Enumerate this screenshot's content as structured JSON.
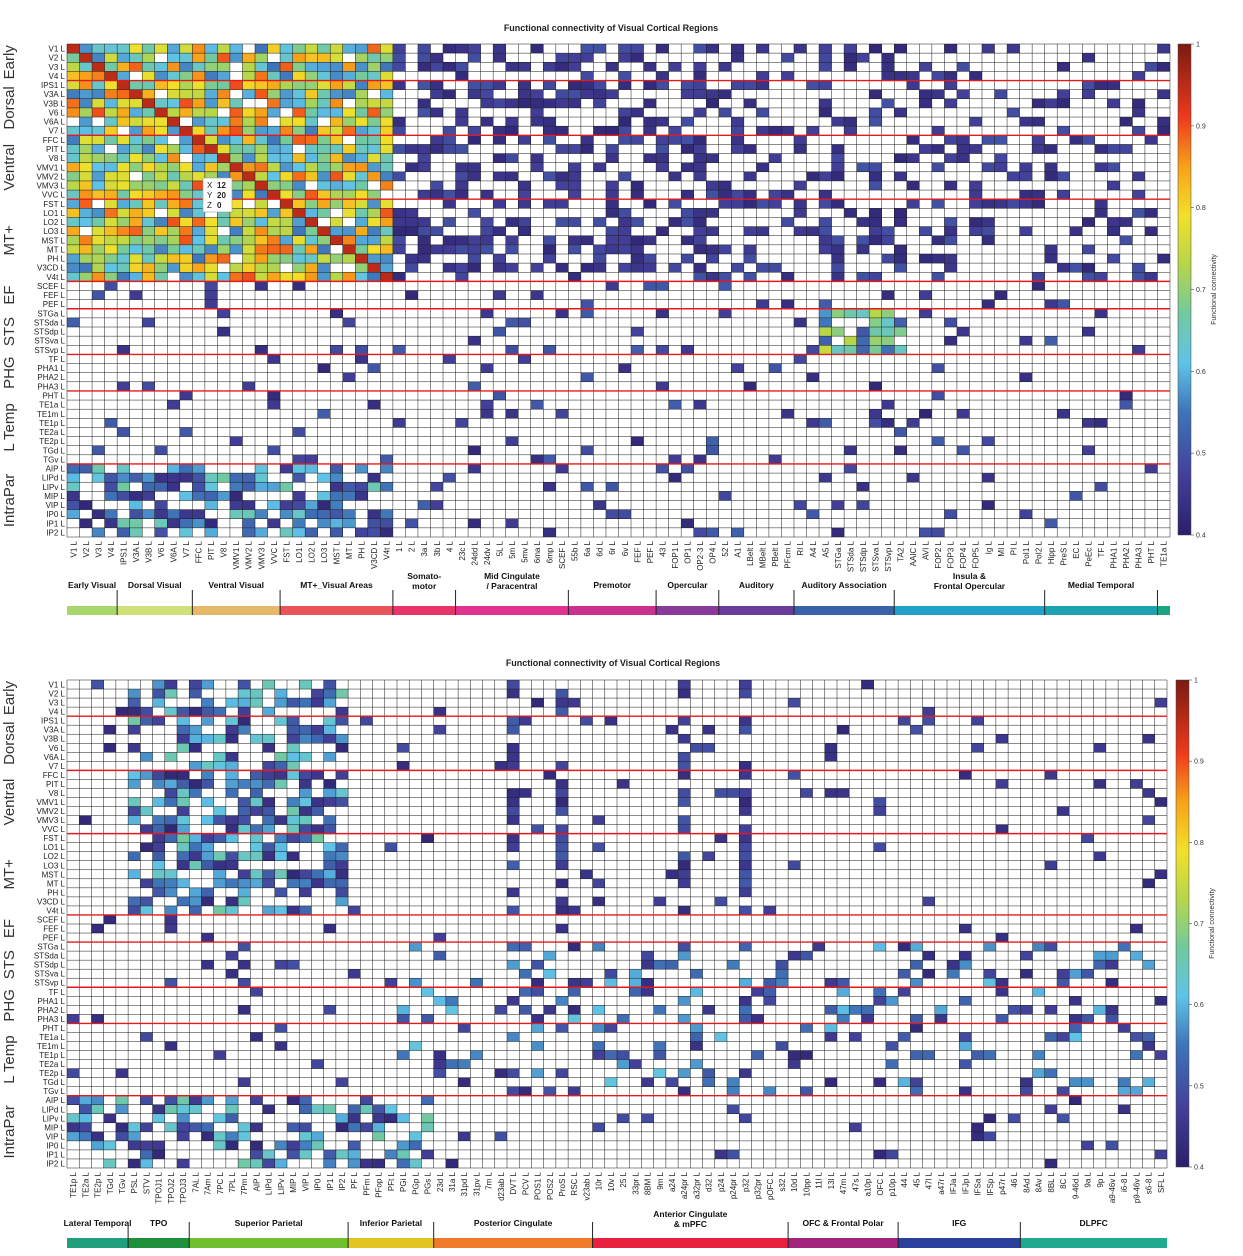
{
  "chart_data": [
    {
      "type": "heatmap",
      "title": "Functional connectivity of Visual Cortical Regions",
      "colorbar_label": "Functional connectivity",
      "colorbar_ticks": [
        "1",
        "0.9",
        "0.8",
        "0.7",
        "0.6",
        "0.5",
        "0.4"
      ],
      "value_range": [
        0.4,
        1
      ],
      "row_labels": [
        "V1 L",
        "V2 L",
        "V3 L",
        "V4 L",
        "IPS1 L",
        "V3A L",
        "V3B L",
        "V6 L",
        "V6A L",
        "V7 L",
        "FFC L",
        "PIT L",
        "V8 L",
        "VMV1 L",
        "VMV2 L",
        "VMV3 L",
        "VVC L",
        "FST L",
        "LO1 L",
        "LO2 L",
        "LO3 L",
        "MST L",
        "MT L",
        "PH L",
        "V3CD L",
        "V4t L",
        "SCEF L",
        "FEF L",
        "PEF L",
        "STGa L",
        "STSda L",
        "STSdp L",
        "STSva L",
        "STSvp L",
        "TF L",
        "PHA1 L",
        "PHA2 L",
        "PHA3 L",
        "PHT L",
        "TE1a L",
        "TE1m L",
        "TE1p L",
        "TE2a L",
        "TE2p L",
        "TGd L",
        "TGv L",
        "AIP L",
        "LIPd L",
        "LIPv L",
        "MIP L",
        "VIP L",
        "IP0 L",
        "IP1 L",
        "IP2 L"
      ],
      "row_groups": [
        {
          "name": "Early",
          "start": 0,
          "count": 4
        },
        {
          "name": "Dorsal",
          "start": 4,
          "count": 6
        },
        {
          "name": "Ventral",
          "start": 10,
          "count": 7
        },
        {
          "name": "MT+",
          "start": 17,
          "count": 9
        },
        {
          "name": "EF",
          "start": 26,
          "count": 3
        },
        {
          "name": "STS",
          "start": 29,
          "count": 5
        },
        {
          "name": "PHG",
          "start": 34,
          "count": 4
        },
        {
          "name": "L Temp",
          "start": 38,
          "count": 8
        },
        {
          "name": "IntraPar",
          "start": 46,
          "count": 8
        }
      ],
      "col_labels": [
        "V1 L",
        "V2 L",
        "V3 L",
        "V4 L",
        "IPS1 L",
        "V3A L",
        "V3B L",
        "V6 L",
        "V6A L",
        "V7 L",
        "FFC L",
        "PIT L",
        "V8 L",
        "VMV1 L",
        "VMV2 L",
        "VMV3 L",
        "VVC L",
        "FST L",
        "LO1 L",
        "LO2 L",
        "LO3 L",
        "MST L",
        "MT L",
        "PH L",
        "V3CD L",
        "V4t L",
        "1 L",
        "2 L",
        "3a L",
        "3b L",
        "4 L",
        "23c L",
        "24dd L",
        "24dv L",
        "5L L",
        "5m L",
        "5mv L",
        "6ma L",
        "6mp L",
        "SCEF L",
        "55b L",
        "6a L",
        "6d L",
        "6r L",
        "6v L",
        "FEF L",
        "PEF L",
        "43 L",
        "FOP1 L",
        "OP1 L",
        "OP2-3 L",
        "OP4 L",
        "52 L",
        "A1 L",
        "LBelt L",
        "MBelt L",
        "PBelt L",
        "PFcm L",
        "RI L",
        "A4 L",
        "A5 L",
        "STGa L",
        "STSda L",
        "STSdp L",
        "STSva L",
        "STSvp L",
        "TA2 L",
        "AAIC L",
        "AVI L",
        "FOP2 L",
        "FOP3 L",
        "FOP4 L",
        "FOP5 L",
        "Ig L",
        "MI L",
        "PI L",
        "PoI1 L",
        "PoI2 L",
        "Hipp L",
        "PreS L",
        "EC L",
        "PeEc L",
        "TF L",
        "PHA1 L",
        "PHA2 L",
        "PHA3 L",
        "PHT L",
        "TE1a L"
      ],
      "col_networks": [
        {
          "name": "Early Visual",
          "color": "#a6d66c",
          "start": 0,
          "count": 4
        },
        {
          "name": "Dorsal Visual",
          "color": "#cfe07a",
          "start": 4,
          "count": 6
        },
        {
          "name": "Ventral Visual",
          "color": "#e6b86a",
          "start": 10,
          "count": 7
        },
        {
          "name": "MT+_Visual Areas",
          "color": "#e9545b",
          "start": 17,
          "count": 9
        },
        {
          "name": "Somato-motor",
          "color": "#e8336b",
          "start": 26,
          "count": 5
        },
        {
          "name": "Mid Cingulate / Paracentral",
          "color": "#e0338f",
          "start": 31,
          "count": 9
        },
        {
          "name": "Premotor",
          "color": "#c9318f",
          "start": 40,
          "count": 7
        },
        {
          "name": "Opercular",
          "color": "#8a3b9a",
          "start": 47,
          "count": 5
        },
        {
          "name": "Auditory",
          "color": "#6a3d9a",
          "start": 52,
          "count": 6
        },
        {
          "name": "Auditory Association",
          "color": "#3a62a8",
          "start": 58,
          "count": 8
        },
        {
          "name": "Insula & Frontal Opercular",
          "color": "#22a0c8",
          "start": 66,
          "count": 12
        },
        {
          "name": "Medial Temporal",
          "color": "#1ea2b2",
          "start": 78,
          "count": 9
        },
        {
          "name": "",
          "color": "#1ea47e",
          "start": 87,
          "count": 1
        }
      ],
      "tooltip": {
        "x_label": "X",
        "x_value": "12",
        "y_label": "Y",
        "y_value": "20",
        "z_label": "Z",
        "z_value": "0"
      }
    },
    {
      "type": "heatmap",
      "title": "Functional connectivity of Visual Cortical Regions",
      "colorbar_label": "Functional connectivity",
      "colorbar_ticks": [
        "1",
        "0.9",
        "0.8",
        "0.7",
        "0.6",
        "0.5",
        "0.4"
      ],
      "value_range": [
        0.4,
        1
      ],
      "row_labels": [
        "V1 L",
        "V2 L",
        "V3 L",
        "V4 L",
        "IPS1 L",
        "V3A L",
        "V3B L",
        "V6 L",
        "V6A L",
        "V7 L",
        "FFC L",
        "PIT L",
        "V8 L",
        "VMV1 L",
        "VMV2 L",
        "VMV3 L",
        "VVC L",
        "FST L",
        "LO1 L",
        "LO2 L",
        "LO3 L",
        "MST L",
        "MT L",
        "PH L",
        "V3CD L",
        "V4t L",
        "SCEF L",
        "FEF L",
        "PEF L",
        "STGa L",
        "STSda L",
        "STSdp L",
        "STSva L",
        "STSvp L",
        "TF L",
        "PHA1 L",
        "PHA2 L",
        "PHA3 L",
        "PHT L",
        "TE1a L",
        "TE1m L",
        "TE1p L",
        "TE2a L",
        "TE2p L",
        "TGd L",
        "TGv L",
        "AIP L",
        "LIPd L",
        "LIPv L",
        "MIP L",
        "VIP L",
        "IP0 L",
        "IP1 L",
        "IP2 L"
      ],
      "row_groups": [
        {
          "name": "Early",
          "start": 0,
          "count": 4
        },
        {
          "name": "Dorsal",
          "start": 4,
          "count": 6
        },
        {
          "name": "Ventral",
          "start": 10,
          "count": 7
        },
        {
          "name": "MT+",
          "start": 17,
          "count": 9
        },
        {
          "name": "EF",
          "start": 26,
          "count": 3
        },
        {
          "name": "STS",
          "start": 29,
          "count": 5
        },
        {
          "name": "PHG",
          "start": 34,
          "count": 4
        },
        {
          "name": "L Temp",
          "start": 38,
          "count": 8
        },
        {
          "name": "IntraPar",
          "start": 46,
          "count": 8
        }
      ],
      "col_labels": [
        "TE1p L",
        "TE2a L",
        "TE2p L",
        "TGd L",
        "TGv L",
        "PSL L",
        "STV L",
        "TPOJ1 L",
        "TPOJ2 L",
        "TPOJ3 L",
        "7AL L",
        "7Am L",
        "7PC L",
        "7PL L",
        "7Pm L",
        "AIP L",
        "LIPd L",
        "LIPv L",
        "MIP L",
        "VIP L",
        "IP0 L",
        "IP1 L",
        "IP2 L",
        "PF L",
        "PFm L",
        "PFop L",
        "PFt L",
        "PGi L",
        "PGp L",
        "PGs L",
        "23d L",
        "31a L",
        "31pd L",
        "31pv L",
        "7m L",
        "d23ab L",
        "DVT L",
        "PCV L",
        "POS1 L",
        "POS2 L",
        "ProS L",
        "RSC L",
        "v23ab L",
        "10r L",
        "10v L",
        "25 L",
        "33pr L",
        "8BM L",
        "9m L",
        "a24 L",
        "a24pr L",
        "a32pr L",
        "d32 L",
        "p24 L",
        "p24pr L",
        "p32 L",
        "p32pr L",
        "pOFC L",
        "s32 L",
        "10d L",
        "10pp L",
        "11l L",
        "13l L",
        "47m L",
        "47s L",
        "a10p L",
        "OFC L",
        "p10p L",
        "44 L",
        "45 L",
        "47l L",
        "a47r L",
        "IFJa L",
        "IFJp L",
        "IFSa L",
        "IFSp L",
        "p47r L",
        "46 L",
        "8Ad L",
        "8Av L",
        "8BL L",
        "8C L",
        "9-46d L",
        "9a L",
        "9p L",
        "a9-46v L",
        "i6-8 L",
        "p9-46v L",
        "s6-8 L",
        "SFL L"
      ],
      "col_networks": [
        {
          "name": "Lateral Temporal",
          "color": "#1f9f7c",
          "start": 0,
          "count": 5
        },
        {
          "name": "TPO",
          "color": "#1e8f3a",
          "start": 5,
          "count": 5
        },
        {
          "name": "Superior Parietal",
          "color": "#6fbf2f",
          "start": 10,
          "count": 13
        },
        {
          "name": "Inferior Parietal",
          "color": "#e2c422",
          "start": 23,
          "count": 7
        },
        {
          "name": "Posterior Cingulate",
          "color": "#ef7a2a",
          "start": 30,
          "count": 13
        },
        {
          "name": "Anterior Cingulate & mPFC",
          "color": "#e8213f",
          "start": 43,
          "count": 16
        },
        {
          "name": "OFC & Frontal Polar",
          "color": "#a2247f",
          "start": 59,
          "count": 9
        },
        {
          "name": "IFG",
          "color": "#2a3f9a",
          "start": 68,
          "count": 10
        },
        {
          "name": "DLPFC",
          "color": "#21a98d",
          "start": 78,
          "count": 12
        }
      ]
    }
  ]
}
